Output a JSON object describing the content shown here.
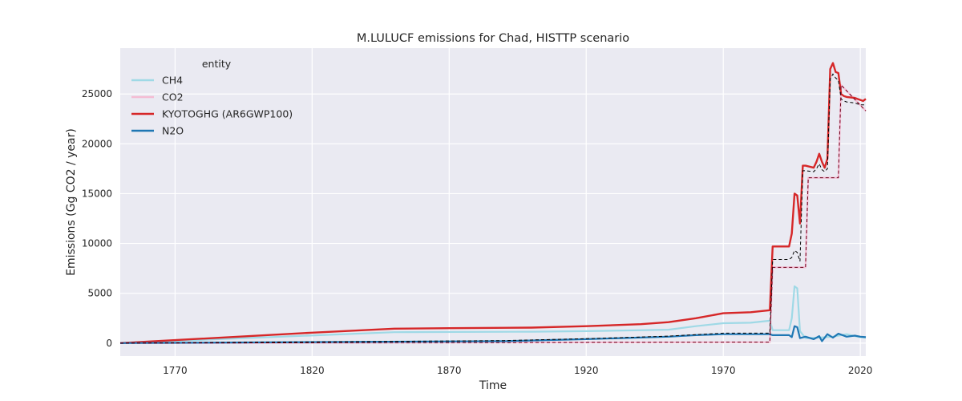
{
  "chart_data": {
    "type": "line",
    "title": "M.LULUCF emissions for Chad, HISTTP scenario",
    "xlabel": "Time",
    "ylabel": "Emissions (Gg CO2 / year)",
    "xlim": [
      1750,
      2022
    ],
    "ylim": [
      -1300,
      29600
    ],
    "xticks": [
      1770,
      1820,
      1870,
      1920,
      1970,
      2020
    ],
    "yticks": [
      0,
      5000,
      10000,
      15000,
      20000,
      25000
    ],
    "grid": true,
    "background": "#eaeaf2",
    "legend": {
      "title": "entity",
      "position": "top-left",
      "entries": [
        "CH4",
        "CO2",
        "KYOTOGHG (AR6GWP100)",
        "N2O"
      ]
    },
    "series": [
      {
        "name": "CH4",
        "color": "#9fd9e6",
        "x": [
          1750,
          1850,
          1900,
          1920,
          1950,
          1960,
          1970,
          1980,
          1987,
          1988,
          1994,
          1995,
          1996,
          1997,
          1998,
          2000,
          2005,
          2010,
          2012,
          2015,
          2018,
          2020,
          2022
        ],
        "y": [
          0,
          1100,
          1150,
          1200,
          1350,
          1700,
          2000,
          2050,
          2250,
          1300,
          1300,
          2500,
          5700,
          5500,
          1200,
          500,
          550,
          650,
          750,
          900,
          700,
          600,
          550
        ]
      },
      {
        "name": "CO2",
        "color": "#f4bcd3",
        "x": [
          1750,
          1987,
          1988,
          2000,
          2001,
          2012,
          2013,
          2022
        ],
        "y": [
          0,
          100,
          7600,
          7600,
          16600,
          16600,
          25900,
          23300
        ]
      },
      {
        "name": "KYOTOGHG (AR6GWP100)",
        "color": "#d62728",
        "x": [
          1750,
          1770,
          1820,
          1850,
          1870,
          1900,
          1920,
          1940,
          1950,
          1960,
          1970,
          1980,
          1987,
          1988,
          1994,
          1995,
          1996,
          1997,
          1998,
          1999,
          2000,
          2003,
          2004,
          2005,
          2006,
          2007,
          2008,
          2009,
          2010,
          2011,
          2012,
          2013,
          2014,
          2015,
          2018,
          2019,
          2020,
          2021,
          2022
        ],
        "y": [
          0,
          300,
          1050,
          1450,
          1500,
          1560,
          1700,
          1900,
          2100,
          2500,
          3000,
          3100,
          3300,
          9700,
          9700,
          11000,
          15000,
          14800,
          12000,
          17800,
          17800,
          17600,
          18200,
          19000,
          18200,
          17600,
          18500,
          27500,
          28100,
          27200,
          27100,
          25000,
          24800,
          24700,
          24600,
          24500,
          24400,
          24300,
          24500
        ]
      },
      {
        "name": "N2O",
        "color": "#1f77b4",
        "x": [
          1750,
          1890,
          1920,
          1950,
          1960,
          1970,
          1980,
          1987,
          1988,
          1994,
          1995,
          1996,
          1997,
          1998,
          2000,
          2003,
          2005,
          2006,
          2008,
          2010,
          2012,
          2015,
          2018,
          2020,
          2022
        ],
        "y": [
          0,
          200,
          400,
          650,
          800,
          900,
          900,
          900,
          800,
          800,
          600,
          1700,
          1600,
          500,
          650,
          400,
          700,
          200,
          900,
          550,
          950,
          650,
          750,
          650,
          600
        ]
      }
    ],
    "reference_lines": [
      {
        "color": "#000000",
        "style": "dashed",
        "x": [
          1750,
          1890,
          1920,
          1950,
          1960,
          1970,
          1980,
          1987,
          1988,
          1994,
          1995,
          1996,
          1997,
          1998,
          1999,
          2000,
          2003,
          2004,
          2005,
          2006,
          2007,
          2008,
          2009,
          2010,
          2011,
          2012,
          2013,
          2014,
          2015,
          2018,
          2019,
          2020,
          2022
        ],
        "y": [
          0,
          250,
          450,
          700,
          850,
          1000,
          1000,
          1000,
          8400,
          8400,
          8600,
          9300,
          9100,
          8200,
          17300,
          17300,
          17200,
          17500,
          18000,
          17400,
          17200,
          17500,
          26500,
          27000,
          26600,
          26400,
          24500,
          24300,
          24200,
          24100,
          24000,
          23900,
          23900
        ]
      },
      {
        "color": "#6b0018",
        "style": "dashed",
        "x": [
          1750,
          1987,
          1988,
          2000,
          2001,
          2012,
          2013,
          2022
        ],
        "y": [
          0,
          100,
          7600,
          7600,
          16600,
          16600,
          25900,
          23300
        ]
      }
    ]
  }
}
